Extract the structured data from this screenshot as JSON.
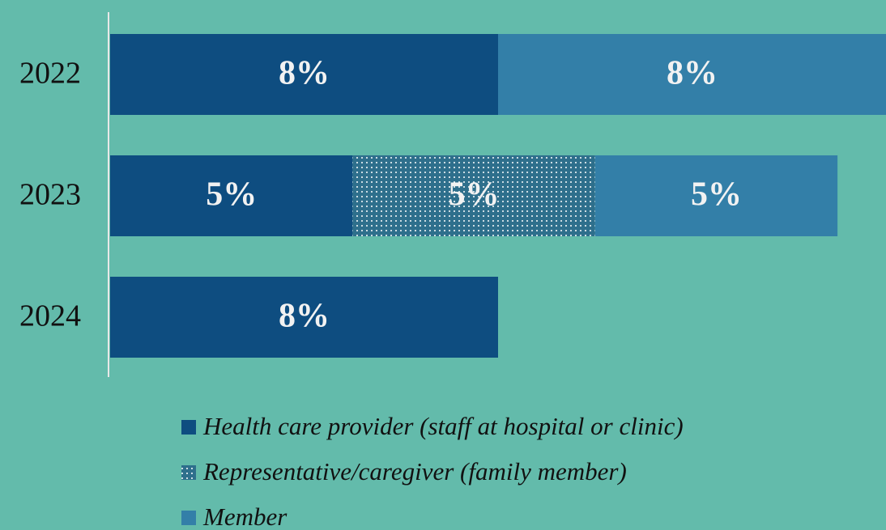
{
  "chart_data": {
    "type": "stacked-bar-horizontal",
    "categories": [
      "2022",
      "2023",
      "2024"
    ],
    "series": [
      {
        "name": "Health care provider (staff at hospital or clinic)",
        "color": "#0e4d80",
        "values": [
          8,
          5,
          8
        ],
        "value_labels": [
          "8%",
          "5%",
          "8%"
        ]
      },
      {
        "name": "Representative/caregiver (family member)",
        "color": "#2e6f8c",
        "pattern": "dots",
        "values": [
          null,
          5,
          null
        ],
        "value_labels": [
          null,
          "5%",
          null
        ]
      },
      {
        "name": "Member",
        "color": "#337fa8",
        "values": [
          8,
          5,
          null
        ],
        "value_labels": [
          "8%",
          "5%",
          null
        ]
      }
    ]
  }
}
